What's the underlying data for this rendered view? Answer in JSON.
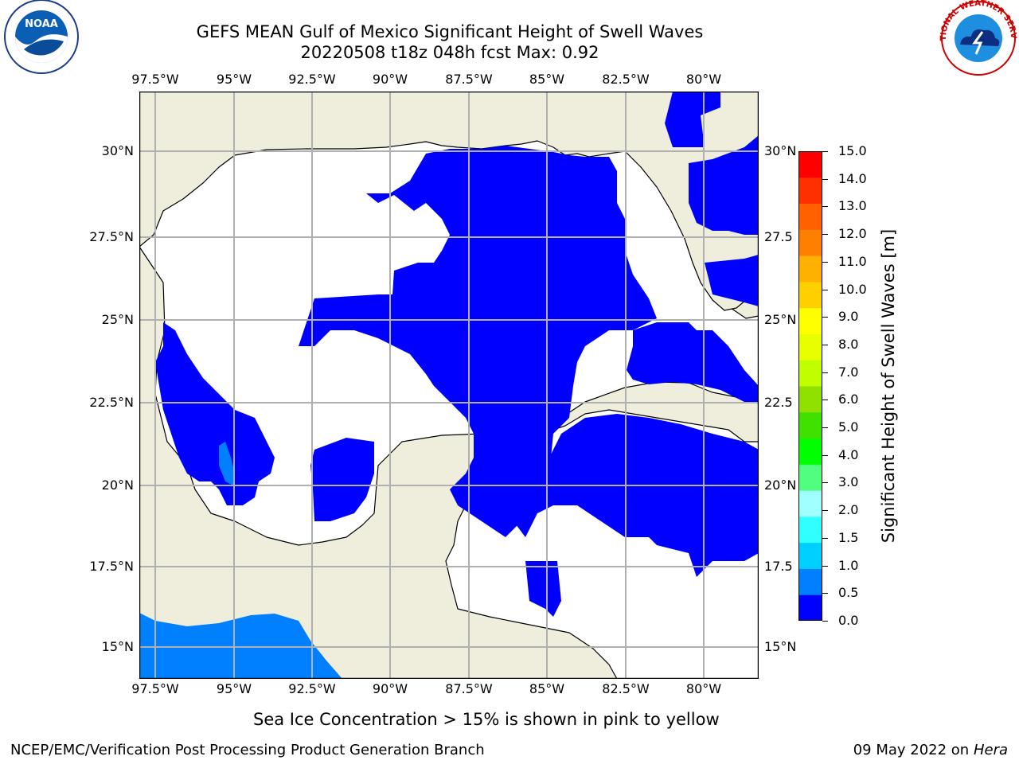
{
  "header": {
    "title_line1": "GEFS MEAN Gulf of Mexico Significant Height of Swell Waves",
    "title_line2": "20220508 t18z 048h fcst   Max: 0.92"
  },
  "logos": {
    "left": "NOAA",
    "right": "NATIONAL WEATHER SERVICE"
  },
  "map": {
    "lon_labels": [
      "97.5°W",
      "95°W",
      "92.5°W",
      "90°W",
      "87.5°W",
      "85°W",
      "82.5°W",
      "80°W"
    ],
    "lat_labels": [
      "30°N",
      "27.5°N",
      "25°N",
      "22.5°N",
      "20°N",
      "17.5°N",
      "15°N"
    ],
    "lat_labels_right": [
      "30°N",
      "27.5",
      "25°N",
      "22.5",
      "20°N",
      "17.5",
      "15°N"
    ],
    "extent": {
      "lon_min": -98,
      "lon_max": -78.2,
      "lat_min": 14,
      "lat_max": 31.8
    },
    "colors": {
      "land": "#efeedc",
      "water_zero": "#ffffff",
      "grid": "#b0b0b0"
    }
  },
  "colorbar": {
    "label": "Significant Height of Swell Waves [m]",
    "ticks": [
      "0.0",
      "0.5",
      "1.0",
      "1.5",
      "2.0",
      "3.0",
      "4.0",
      "5.0",
      "6.0",
      "7.0",
      "8.0",
      "9.0",
      "10.0",
      "11.0",
      "12.0",
      "13.0",
      "14.0",
      "15.0"
    ],
    "colors": [
      "#0000ff",
      "#0080ff",
      "#00d0ff",
      "#30ffff",
      "#a0ffff",
      "#50ff80",
      "#00ff00",
      "#40e000",
      "#90e000",
      "#c0ff00",
      "#e8ff00",
      "#ffff00",
      "#ffd000",
      "#ffb000",
      "#ff8000",
      "#ff6000",
      "#ff3000",
      "#ff0000"
    ]
  },
  "note": "Sea Ice Concentration > 15% is shown in pink to yellow",
  "footer": {
    "left": "NCEP/EMC/Verification Post Processing Product Generation Branch",
    "right_date": "09 May 2022 on",
    "right_host": "Hera"
  }
}
